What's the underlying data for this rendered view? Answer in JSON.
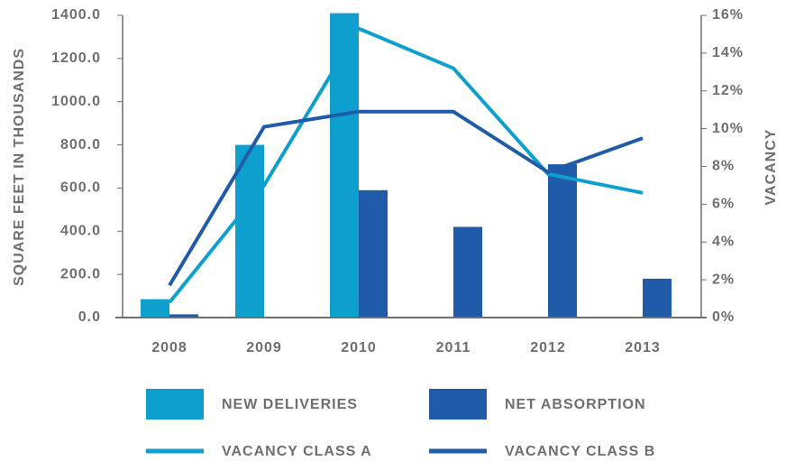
{
  "chart_data": {
    "type": "bar-line",
    "ylabel": "SQUARE FEET IN THOUSANDS",
    "y2label": "VACANCY",
    "categories": [
      "2008",
      "2009",
      "2010",
      "2011",
      "2012",
      "2013"
    ],
    "series": [
      {
        "name": "NEW DELIVERIES",
        "type": "bar",
        "color": "#0e9fcf",
        "values": [
          85,
          800,
          1410,
          0,
          0,
          0
        ]
      },
      {
        "name": "NET ABSORPTION",
        "type": "bar",
        "color": "#1f5ba8",
        "values": [
          15,
          0,
          590,
          420,
          710,
          180
        ]
      },
      {
        "name": "VACANCY CLASS A",
        "type": "line",
        "axis": "y2",
        "color": "#0e9fcf",
        "values": [
          0.8,
          7,
          15.3,
          13.2,
          7.6,
          6.6
        ]
      },
      {
        "name": "VACANCY CLASS B",
        "type": "line",
        "axis": "y2",
        "color": "#1f5ba8",
        "values": [
          1.7,
          10.1,
          10.9,
          10.9,
          7.7,
          9.5
        ]
      }
    ],
    "ylim": [
      0,
      1400
    ],
    "yticks": [
      {
        "value": 0,
        "label": "0.0"
      },
      {
        "value": 200,
        "label": "200.0"
      },
      {
        "value": 400,
        "label": "400.0"
      },
      {
        "value": 600,
        "label": "600.0"
      },
      {
        "value": 800,
        "label": "800.0"
      },
      {
        "value": 1000,
        "label": "1000.0"
      },
      {
        "value": 1200,
        "label": "1200.0"
      },
      {
        "value": 1400,
        "label": "1400.0"
      }
    ],
    "y2lim": [
      0,
      16
    ],
    "y2ticks": [
      {
        "value": 0,
        "label": "0%"
      },
      {
        "value": 2,
        "label": "2%"
      },
      {
        "value": 4,
        "label": "4%"
      },
      {
        "value": 6,
        "label": "6%"
      },
      {
        "value": 8,
        "label": "8%"
      },
      {
        "value": 10,
        "label": "10%"
      },
      {
        "value": 12,
        "label": "12%"
      },
      {
        "value": 14,
        "label": "14%"
      },
      {
        "value": 16,
        "label": "16%"
      }
    ],
    "grid": false
  }
}
